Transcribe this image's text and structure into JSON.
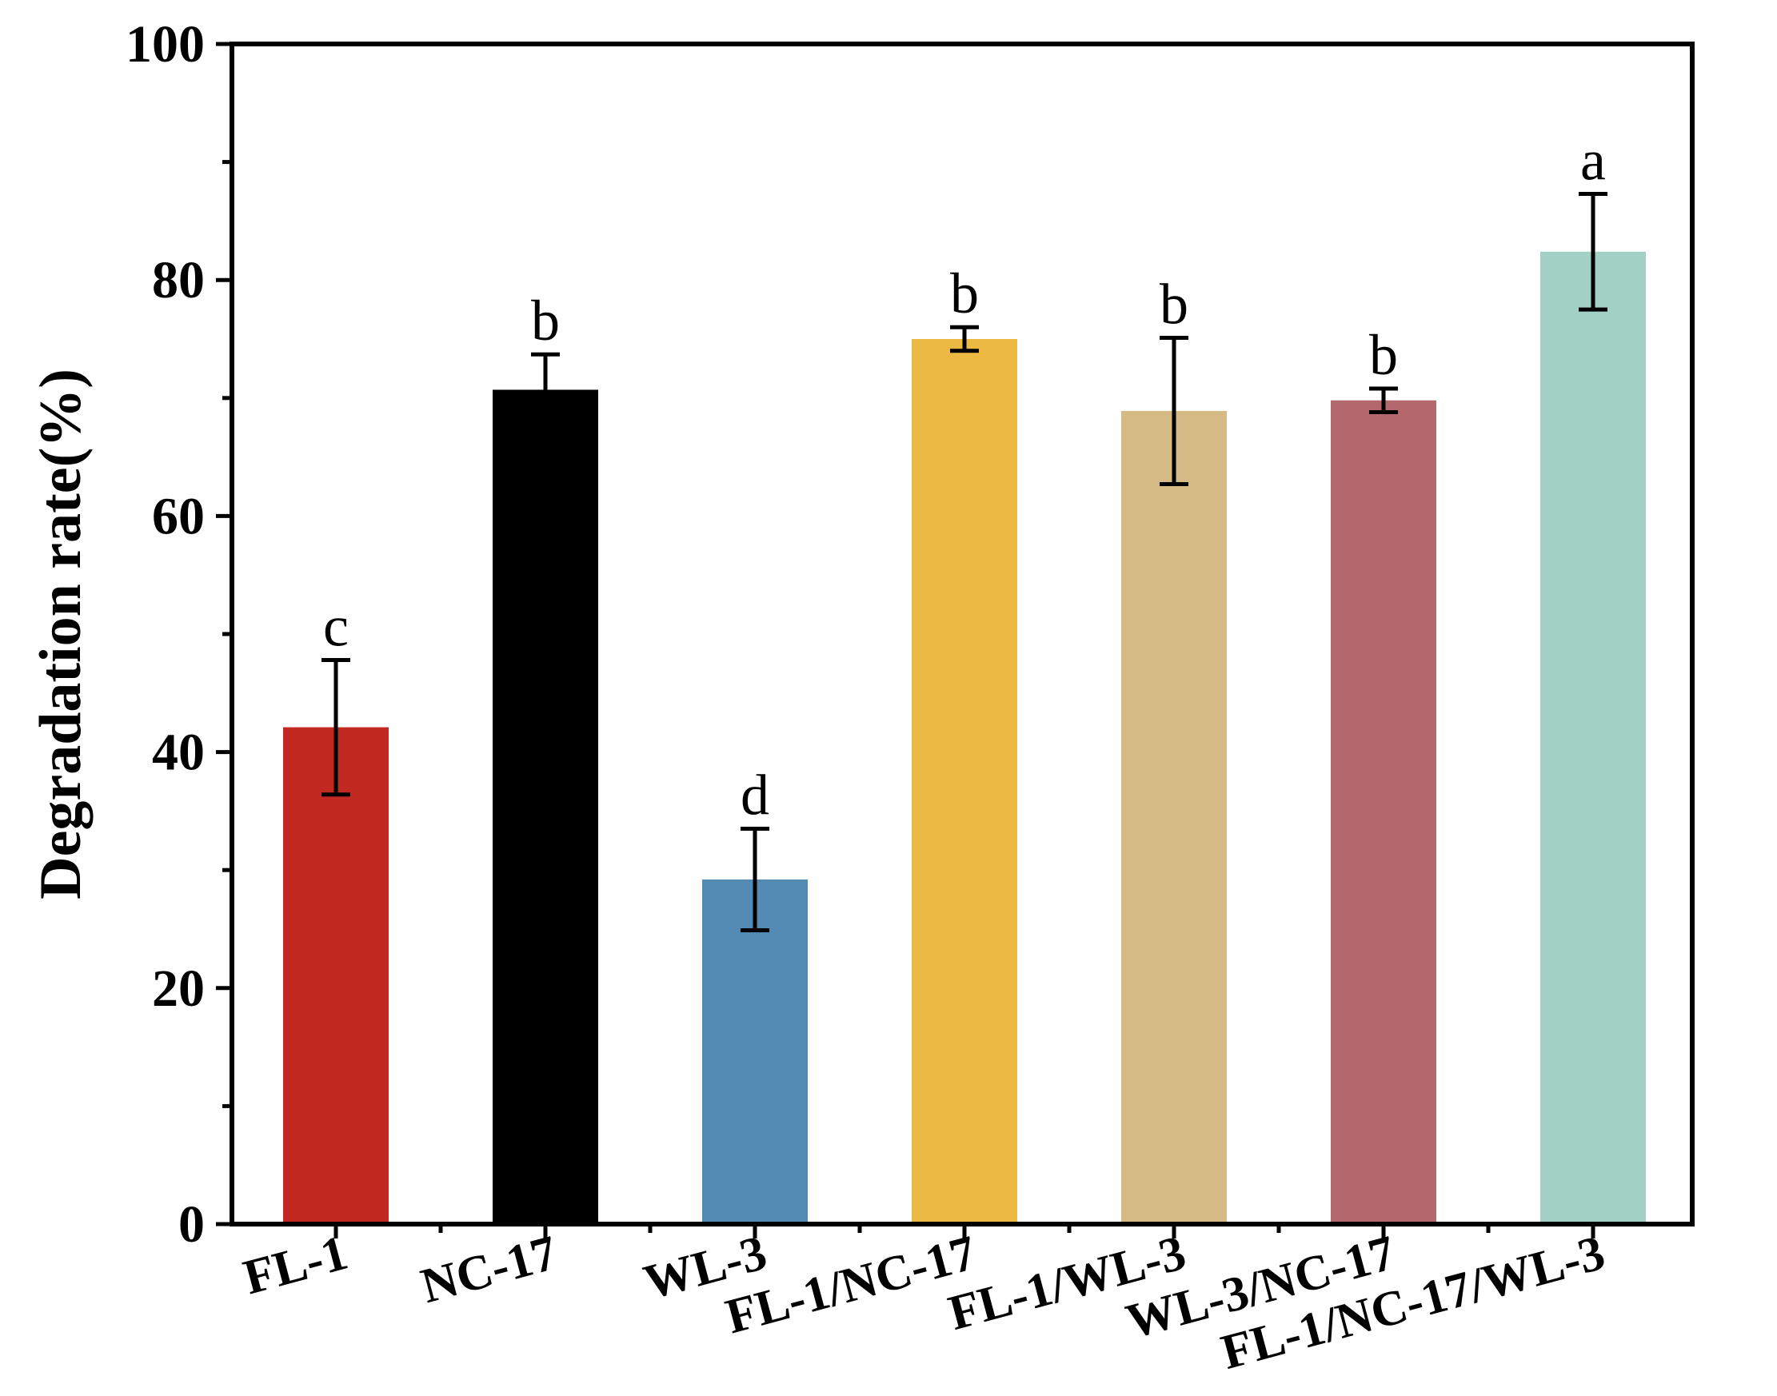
{
  "chart_data": {
    "type": "bar",
    "title": "",
    "xlabel": "",
    "ylabel": "Degradation rate(%)",
    "ylim": [
      0,
      100
    ],
    "yticks": [
      0,
      20,
      40,
      60,
      80,
      100
    ],
    "grid": false,
    "categories": [
      "FL-1",
      "NC-17",
      "WL-3",
      "FL-1/NC-17",
      "FL-1/WL-3",
      "WL-3/NC-17",
      "FL-1/NC-17/WL-3"
    ],
    "values": [
      42.1,
      70.7,
      29.2,
      75.0,
      68.9,
      69.8,
      82.4
    ],
    "errors": [
      5.7,
      3.0,
      4.3,
      1.0,
      6.2,
      1.0,
      4.9
    ],
    "significance": [
      "c",
      "b",
      "d",
      "b",
      "b",
      "b",
      "a"
    ],
    "colors": [
      "#c22a21",
      "#000000",
      "#538ab3",
      "#ecb942",
      "#d5ba85",
      "#b3686d",
      "#a3d0c4"
    ]
  }
}
